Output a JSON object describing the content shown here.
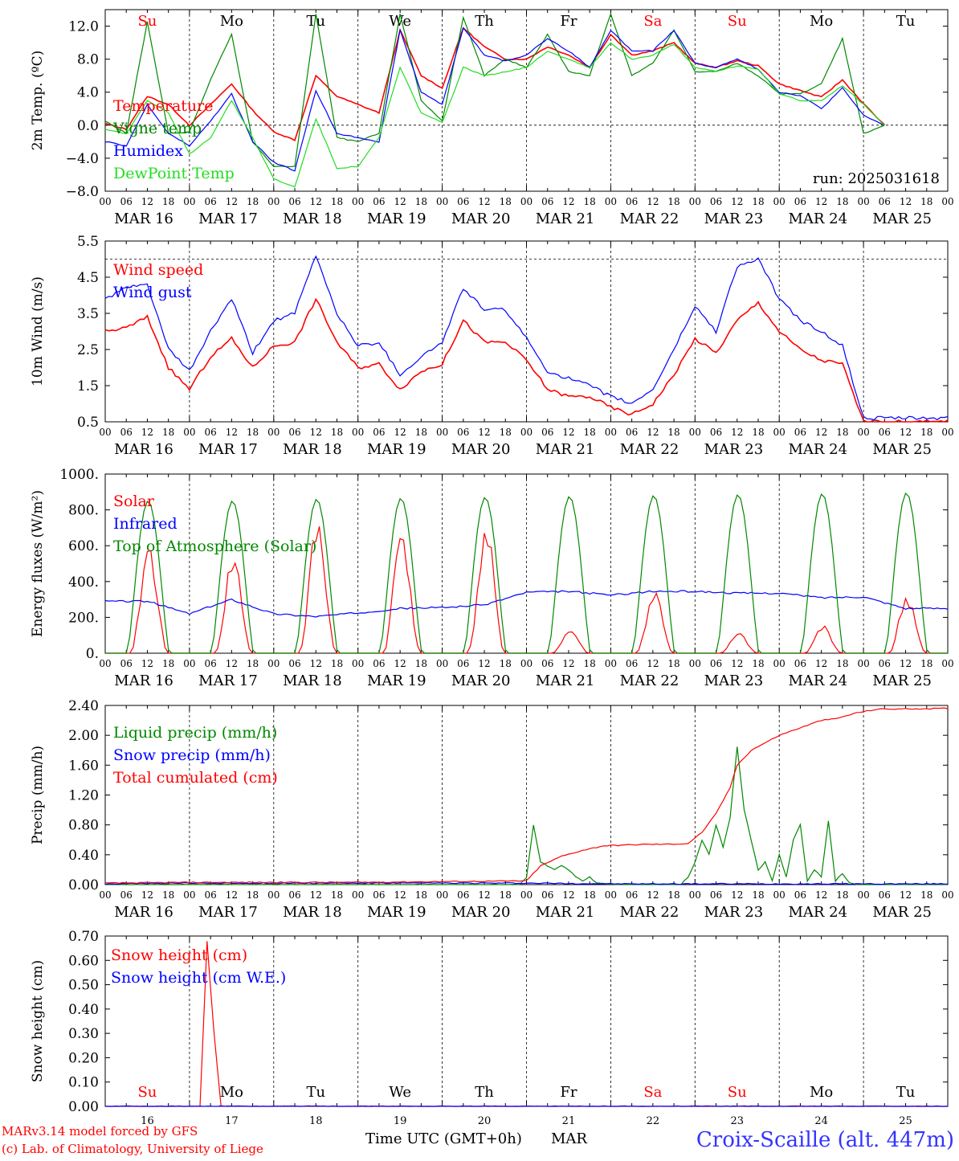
{
  "colors": {
    "red": "#ff0000",
    "green": "#008800",
    "lightgreen": "#22dd22",
    "blue": "#0000ff",
    "black": "#000000",
    "footer_blue": "#3333ff"
  },
  "day_labels": {
    "names": [
      "Su",
      "Mo",
      "Tu",
      "We",
      "Th",
      "Fr",
      "Sa",
      "Su",
      "Mo",
      "Tu"
    ],
    "weekend_index": [
      0,
      6,
      7
    ],
    "dates": [
      "MAR 16",
      "MAR 17",
      "MAR 18",
      "MAR 19",
      "MAR 20",
      "MAR 21",
      "MAR 22",
      "MAR 23",
      "MAR 24",
      "MAR 25"
    ],
    "day_numbers": [
      "16",
      "17",
      "18",
      "19",
      "20",
      "21",
      "22",
      "23",
      "24",
      "25"
    ],
    "hour_ticks": [
      "00",
      "06",
      "12",
      "18"
    ],
    "hour_end": "00"
  },
  "footer": {
    "model_line": "MARv3.14 model forced by GFS",
    "lab_line": "(c) Lab. of Climatology, University of Liege",
    "axis_title": "Time UTC (GMT+0h)",
    "month": "MAR",
    "station": "Croix-Scaille (alt. 447m)"
  },
  "chart_data": [
    {
      "type": "line",
      "id": "temp",
      "ylabel": "2m Temp. (ºC)",
      "ylim": [
        -8,
        14
      ],
      "yticks": [
        12,
        8,
        4,
        0,
        -4,
        -8
      ],
      "ytick_labels": [
        "12.0",
        "8.0",
        "4.0",
        "0.0",
        "−4.0",
        "−8.0"
      ],
      "ref_line": 0,
      "annotation": "run: 2025031618",
      "x_unit": "hours since 2025-03-16 00 UTC",
      "series": [
        {
          "name": "Temperature",
          "color": "#ff0000",
          "x": [
            0,
            6,
            12,
            18,
            24,
            30,
            36,
            42,
            48,
            54,
            60,
            66,
            72,
            78,
            84,
            90,
            96,
            102,
            108,
            114,
            120,
            126,
            132,
            138,
            144,
            150,
            156,
            162,
            168,
            174,
            180,
            186,
            192,
            198,
            204,
            210,
            216,
            222,
            228,
            234,
            240
          ],
          "values": [
            0.2,
            -0.5,
            3.5,
            2.5,
            0.0,
            2.5,
            5.0,
            1.8,
            -0.8,
            -1.8,
            6.0,
            3.5,
            2.5,
            1.5,
            11.5,
            6.0,
            4.5,
            11.8,
            9.5,
            8.0,
            8.0,
            9.5,
            8.5,
            7.0,
            11.0,
            8.5,
            9.0,
            10.0,
            7.5,
            7.0,
            7.8,
            7.2,
            5.0,
            4.2,
            3.4,
            5.5,
            2.6,
            0,
            0,
            0,
            0
          ]
        },
        {
          "name": "Vigne temp",
          "color": "#008800",
          "x": [
            0,
            6,
            12,
            18,
            24,
            30,
            36,
            42,
            48,
            54,
            60,
            66,
            72,
            78,
            84,
            90,
            96,
            102,
            108,
            114,
            120,
            126,
            132,
            138,
            144,
            150,
            156,
            162,
            168,
            174,
            180,
            186,
            192,
            198,
            204,
            210,
            216,
            222,
            228,
            234,
            240
          ],
          "values": [
            0.5,
            -1.0,
            12.5,
            -1.0,
            -0.8,
            5.5,
            11.0,
            -2.0,
            -5.0,
            -5.0,
            13.5,
            -1.5,
            -2.0,
            -1.0,
            13.5,
            3.0,
            0.5,
            13.0,
            6.0,
            8.0,
            7.0,
            11.0,
            6.5,
            6.0,
            13.5,
            6.0,
            7.5,
            11.5,
            6.5,
            6.5,
            7.5,
            6.0,
            3.8,
            3.8,
            5.0,
            10.5,
            -1.0,
            0,
            0,
            0,
            0
          ]
        },
        {
          "name": "Humidex",
          "color": "#0000ff",
          "x": [
            0,
            6,
            12,
            18,
            24,
            30,
            36,
            42,
            48,
            54,
            60,
            66,
            72,
            78,
            84,
            90,
            96,
            102,
            108,
            114,
            120,
            126,
            132,
            138,
            144,
            150,
            156,
            162,
            168,
            174,
            180,
            186,
            192,
            198,
            204,
            210,
            216,
            222,
            228,
            234,
            240
          ],
          "values": [
            -2.0,
            -2.5,
            2.5,
            -1.0,
            -2.5,
            0.5,
            3.8,
            -2.0,
            -4.5,
            -5.5,
            4.2,
            -1.0,
            -1.5,
            -2.0,
            11.5,
            4.0,
            2.5,
            11.8,
            8.5,
            7.8,
            8.5,
            10.5,
            9.0,
            7.0,
            11.5,
            9.0,
            9.0,
            11.5,
            7.5,
            7.0,
            8.0,
            6.8,
            4.0,
            3.6,
            2.0,
            4.5,
            1.2,
            0,
            0,
            0,
            0
          ]
        },
        {
          "name": "DewPoint Temp",
          "color": "#22dd22",
          "x": [
            0,
            6,
            12,
            18,
            24,
            30,
            36,
            42,
            48,
            54,
            60,
            66,
            72,
            78,
            84,
            90,
            96,
            102,
            108,
            114,
            120,
            126,
            132,
            138,
            144,
            150,
            156,
            162,
            168,
            174,
            180,
            186,
            192,
            198,
            204,
            210,
            216,
            222,
            228,
            234,
            240
          ],
          "values": [
            -0.5,
            -1.0,
            3.0,
            1.5,
            -3.5,
            -1.5,
            3.0,
            -1.5,
            -6.5,
            -7.5,
            0.8,
            -5.2,
            -5.0,
            -1.5,
            7.0,
            1.5,
            0.3,
            7.0,
            6.0,
            6.5,
            7.0,
            9.0,
            8.0,
            7.0,
            10.0,
            8.0,
            8.5,
            9.8,
            7.0,
            6.5,
            7.2,
            6.8,
            3.8,
            3.0,
            3.0,
            4.8,
            2.5,
            0,
            0,
            0,
            0
          ]
        }
      ]
    },
    {
      "type": "line",
      "id": "wind",
      "ylabel": "10m Wind (m/s)",
      "ylim": [
        0.5,
        5.5
      ],
      "yticks": [
        5.5,
        4.5,
        3.5,
        2.5,
        1.5,
        0.5
      ],
      "ytick_labels": [
        "5.5",
        "4.5",
        "3.5",
        "2.5",
        "1.5",
        "0.5"
      ],
      "ref_line": 5.0,
      "series": [
        {
          "name": "Wind speed",
          "color": "#ff0000",
          "x": [
            0,
            6,
            12,
            18,
            24,
            30,
            36,
            42,
            48,
            54,
            60,
            66,
            72,
            78,
            84,
            90,
            96,
            102,
            108,
            114,
            120,
            126,
            132,
            138,
            144,
            150,
            156,
            162,
            168,
            174,
            180,
            186,
            192,
            198,
            204,
            210,
            216,
            222,
            228,
            234,
            240
          ],
          "values": [
            3.0,
            3.1,
            3.4,
            2.0,
            1.4,
            2.3,
            2.8,
            2.0,
            2.6,
            2.7,
            3.9,
            2.7,
            2.0,
            2.1,
            1.4,
            1.9,
            2.1,
            3.3,
            2.7,
            2.7,
            2.2,
            1.4,
            1.2,
            1.2,
            0.9,
            0.7,
            1.0,
            1.8,
            2.8,
            2.4,
            3.3,
            3.8,
            3.0,
            2.5,
            2.2,
            2.1,
            0.5,
            0.5,
            0.5,
            0.5,
            0.5
          ]
        },
        {
          "name": "Wind gust",
          "color": "#0000ff",
          "x": [
            0,
            6,
            12,
            18,
            24,
            30,
            36,
            42,
            48,
            54,
            60,
            66,
            72,
            78,
            84,
            90,
            96,
            102,
            108,
            114,
            120,
            126,
            132,
            138,
            144,
            150,
            156,
            162,
            168,
            174,
            180,
            186,
            192,
            198,
            204,
            210,
            216,
            222,
            228,
            234,
            240
          ],
          "values": [
            3.9,
            4.2,
            4.3,
            2.5,
            1.9,
            3.0,
            3.9,
            2.4,
            3.3,
            3.5,
            5.1,
            3.5,
            2.6,
            2.7,
            1.8,
            2.3,
            2.7,
            4.2,
            3.6,
            3.6,
            2.8,
            1.9,
            1.7,
            1.5,
            1.2,
            1.0,
            1.4,
            2.5,
            3.7,
            3.0,
            4.8,
            5.0,
            3.9,
            3.3,
            3.0,
            2.6,
            0.6,
            0.6,
            0.6,
            0.6,
            0.6
          ]
        }
      ]
    },
    {
      "type": "line",
      "id": "flux",
      "ylabel": "Energy fluxes (W/m²)",
      "ylim": [
        0,
        1000
      ],
      "yticks": [
        1000,
        800,
        600,
        400,
        200,
        0
      ],
      "ytick_labels": [
        "1000.",
        "800.",
        "600.",
        "400.",
        "200.",
        "0."
      ],
      "series": [
        {
          "name": "Solar",
          "color": "#ff0000",
          "peaks": [
            560,
            500,
            670,
            650,
            630,
            120,
            320,
            100,
            140,
            300
          ]
        },
        {
          "name": "Infrared",
          "color": "#0000ff",
          "x": [
            0,
            12,
            24,
            36,
            48,
            60,
            72,
            84,
            96,
            108,
            120,
            132,
            144,
            156,
            168,
            180,
            192,
            204,
            216,
            228,
            240
          ],
          "values": [
            290,
            290,
            220,
            300,
            220,
            205,
            225,
            250,
            255,
            270,
            340,
            345,
            325,
            345,
            345,
            335,
            335,
            310,
            315,
            250,
            250
          ]
        },
        {
          "name": "Top of Atmosphere (Solar)",
          "color": "#008800",
          "peaks": [
            850,
            850,
            860,
            865,
            870,
            875,
            880,
            885,
            890,
            895
          ]
        }
      ]
    },
    {
      "type": "line",
      "id": "precip",
      "ylabel": "Precip (mm/h)",
      "ylim": [
        0,
        2.4
      ],
      "yticks": [
        2.4,
        2.0,
        1.6,
        1.2,
        0.8,
        0.4,
        0.0
      ],
      "ytick_labels": [
        "2.40",
        "2.00",
        "1.60",
        "1.20",
        "0.80",
        "0.40",
        "0.00"
      ],
      "series": [
        {
          "name": "Liquid precip (mm/h)",
          "color": "#008800",
          "x": [
            0,
            24,
            48,
            72,
            96,
            118,
            120,
            122,
            124,
            126,
            128,
            130,
            132,
            134,
            136,
            138,
            140,
            142,
            144,
            164,
            166,
            168,
            170,
            172,
            174,
            176,
            178,
            180,
            182,
            184,
            186,
            188,
            190,
            192,
            194,
            196,
            198,
            200,
            202,
            204,
            206,
            208,
            210,
            212,
            214,
            216,
            240
          ],
          "values": [
            0,
            0,
            0,
            0,
            0,
            0,
            0.1,
            0.8,
            0.3,
            0.25,
            0.2,
            0.25,
            0.2,
            0.1,
            0.05,
            0.1,
            0.02,
            0.02,
            0,
            0,
            0.1,
            0.3,
            0.6,
            0.4,
            0.8,
            0.5,
            0.9,
            1.85,
            1.0,
            0.6,
            0.2,
            0.3,
            0.05,
            0.4,
            0.1,
            0.6,
            0.8,
            0.05,
            0.2,
            0.1,
            0.85,
            0.05,
            0.15,
            0.02,
            0,
            0,
            0
          ]
        },
        {
          "name": "Snow precip (mm/h)",
          "color": "#0000ff",
          "x": [
            0,
            24,
            48,
            120,
            144,
            240
          ],
          "values": [
            0.01,
            0.02,
            0.02,
            0.02,
            0.01,
            0.01
          ]
        },
        {
          "name": "Total cumulated (cm)",
          "color": "#ff0000",
          "x": [
            0,
            24,
            48,
            72,
            96,
            120,
            124,
            130,
            136,
            142,
            148,
            154,
            160,
            166,
            170,
            174,
            178,
            180,
            184,
            188,
            192,
            198,
            204,
            208,
            214,
            220,
            240
          ],
          "values": [
            0.02,
            0.03,
            0.03,
            0.03,
            0.04,
            0.05,
            0.25,
            0.38,
            0.46,
            0.52,
            0.53,
            0.54,
            0.54,
            0.55,
            0.7,
            0.95,
            1.3,
            1.6,
            1.8,
            1.9,
            2.0,
            2.1,
            2.2,
            2.22,
            2.3,
            2.35,
            2.36
          ]
        }
      ]
    },
    {
      "type": "line",
      "id": "snow",
      "ylabel": "Snow height (cm)",
      "ylim": [
        0,
        0.7
      ],
      "yticks": [
        0.7,
        0.6,
        0.5,
        0.4,
        0.3,
        0.2,
        0.1,
        0.0
      ],
      "ytick_labels": [
        "0.70",
        "0.60",
        "0.50",
        "0.40",
        "0.30",
        "0.20",
        "0.10",
        "0.00"
      ],
      "series": [
        {
          "name": "Snow height (cm)",
          "color": "#ff0000",
          "x": [
            0,
            27,
            29,
            31,
            33,
            240
          ],
          "values": [
            0,
            0,
            0.68,
            0.3,
            0,
            0
          ]
        },
        {
          "name": "Snow height (cm W.E.)",
          "color": "#0000ff",
          "x": [
            0,
            240
          ],
          "values": [
            0,
            0
          ]
        }
      ]
    }
  ]
}
